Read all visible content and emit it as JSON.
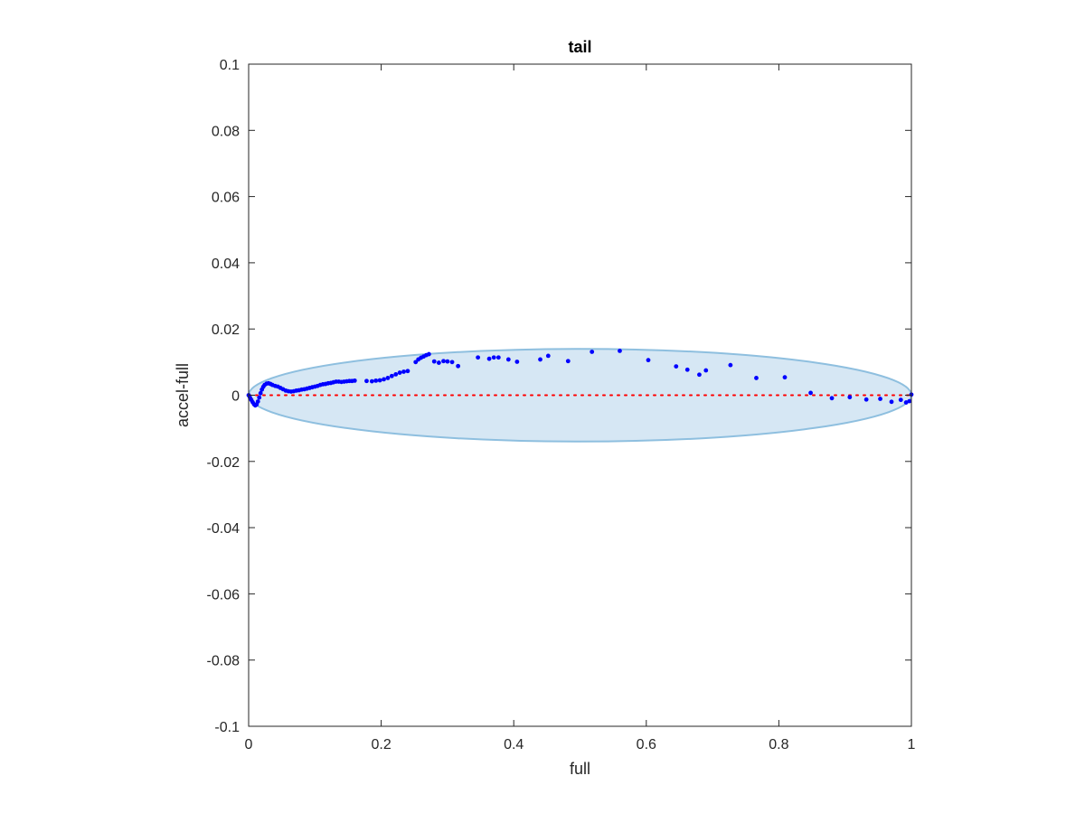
{
  "chart_data": {
    "type": "scatter",
    "title": "tail",
    "xlabel": "full",
    "ylabel": "accel-full",
    "xlim": [
      0,
      1
    ],
    "ylim": [
      -0.1,
      0.1
    ],
    "x_ticks": [
      0,
      0.2,
      0.4,
      0.6,
      0.8,
      1
    ],
    "x_tick_labels": [
      "0",
      "0.2",
      "0.4",
      "0.6",
      "0.8",
      "1"
    ],
    "y_ticks": [
      0.1,
      0.08,
      0.06,
      0.04,
      0.02,
      0,
      -0.02,
      -0.04,
      -0.06,
      -0.08,
      -0.1
    ],
    "y_tick_labels": [
      "0.1",
      "0.08",
      "0.06",
      "0.04",
      "0.02",
      "0",
      "-0.02",
      "-0.04",
      "-0.06",
      "-0.08",
      "-0.1"
    ],
    "grid": false,
    "box": true,
    "reference_line": {
      "y": 0,
      "x_range": [
        0,
        1
      ],
      "style": "dotted",
      "color": "#ff0000"
    },
    "ellipse": {
      "center": [
        0.5,
        0
      ],
      "semi_axes": [
        0.5,
        0.014
      ],
      "fill": "#d6e7f4",
      "stroke": "#8ebfdf"
    },
    "series": [
      {
        "color": "#0000ff",
        "marker": "dot",
        "points": [
          [
            0.0,
            0.0
          ],
          [
            0.002,
            -0.0007
          ],
          [
            0.004,
            -0.0014
          ],
          [
            0.006,
            -0.0021
          ],
          [
            0.008,
            -0.0027
          ],
          [
            0.01,
            -0.0031
          ],
          [
            0.012,
            -0.0028
          ],
          [
            0.014,
            -0.0019
          ],
          [
            0.016,
            -0.0007
          ],
          [
            0.018,
            0.0006
          ],
          [
            0.02,
            0.0017
          ],
          [
            0.022,
            0.0025
          ],
          [
            0.024,
            0.0031
          ],
          [
            0.027,
            0.0035
          ],
          [
            0.03,
            0.0036
          ],
          [
            0.033,
            0.0034
          ],
          [
            0.036,
            0.0031
          ],
          [
            0.04,
            0.0028
          ],
          [
            0.044,
            0.0026
          ],
          [
            0.048,
            0.0022
          ],
          [
            0.052,
            0.0018
          ],
          [
            0.056,
            0.0014
          ],
          [
            0.06,
            0.0012
          ],
          [
            0.064,
            0.0011
          ],
          [
            0.068,
            0.0012
          ],
          [
            0.072,
            0.0014
          ],
          [
            0.076,
            0.0015
          ],
          [
            0.08,
            0.0017
          ],
          [
            0.084,
            0.0018
          ],
          [
            0.088,
            0.002
          ],
          [
            0.092,
            0.0022
          ],
          [
            0.096,
            0.0024
          ],
          [
            0.1,
            0.0026
          ],
          [
            0.104,
            0.0028
          ],
          [
            0.108,
            0.0031
          ],
          [
            0.112,
            0.0033
          ],
          [
            0.116,
            0.0034
          ],
          [
            0.12,
            0.0036
          ],
          [
            0.124,
            0.0037
          ],
          [
            0.128,
            0.0039
          ],
          [
            0.132,
            0.0041
          ],
          [
            0.136,
            0.0041
          ],
          [
            0.14,
            0.004
          ],
          [
            0.144,
            0.0041
          ],
          [
            0.148,
            0.0042
          ],
          [
            0.152,
            0.0043
          ],
          [
            0.156,
            0.0043
          ],
          [
            0.16,
            0.0044
          ],
          [
            0.178,
            0.0043
          ],
          [
            0.186,
            0.0042
          ],
          [
            0.192,
            0.0044
          ],
          [
            0.198,
            0.0045
          ],
          [
            0.204,
            0.0048
          ],
          [
            0.21,
            0.0052
          ],
          [
            0.216,
            0.0058
          ],
          [
            0.222,
            0.0063
          ],
          [
            0.228,
            0.0068
          ],
          [
            0.234,
            0.0071
          ],
          [
            0.24,
            0.0073
          ],
          [
            0.252,
            0.01
          ],
          [
            0.256,
            0.0108
          ],
          [
            0.26,
            0.0113
          ],
          [
            0.264,
            0.0117
          ],
          [
            0.268,
            0.0121
          ],
          [
            0.272,
            0.0124
          ],
          [
            0.28,
            0.0102
          ],
          [
            0.287,
            0.0098
          ],
          [
            0.294,
            0.0103
          ],
          [
            0.3,
            0.0102
          ],
          [
            0.307,
            0.01
          ],
          [
            0.316,
            0.0088
          ],
          [
            0.346,
            0.0114
          ],
          [
            0.363,
            0.011
          ],
          [
            0.37,
            0.0114
          ],
          [
            0.377,
            0.0114
          ],
          [
            0.392,
            0.0108
          ],
          [
            0.405,
            0.0101
          ],
          [
            0.44,
            0.0108
          ],
          [
            0.452,
            0.0119
          ],
          [
            0.482,
            0.0103
          ],
          [
            0.518,
            0.0131
          ],
          [
            0.56,
            0.0134
          ],
          [
            0.603,
            0.0106
          ],
          [
            0.645,
            0.0087
          ],
          [
            0.662,
            0.0077
          ],
          [
            0.68,
            0.0062
          ],
          [
            0.69,
            0.0075
          ],
          [
            0.727,
            0.0091
          ],
          [
            0.766,
            0.0052
          ],
          [
            0.809,
            0.0054
          ],
          [
            0.848,
            0.0007
          ],
          [
            0.88,
            -0.0009
          ],
          [
            0.907,
            -0.0006
          ],
          [
            0.932,
            -0.0013
          ],
          [
            0.953,
            -0.0011
          ],
          [
            0.97,
            -0.002
          ],
          [
            0.984,
            -0.0014
          ],
          [
            0.992,
            -0.0022
          ],
          [
            0.997,
            -0.0018
          ],
          [
            1.0,
            0.0002
          ]
        ]
      }
    ]
  }
}
